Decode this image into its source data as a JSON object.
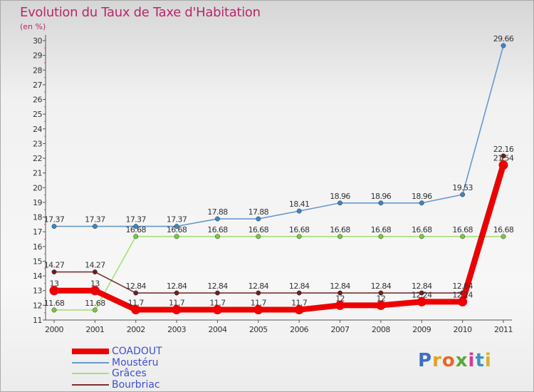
{
  "title": "Evolution du Taux de Taxe d'Habitation",
  "unit": "(en %)",
  "logo": {
    "letters": [
      "P",
      "r",
      "o",
      "x",
      "i",
      "t",
      "i"
    ],
    "colors": [
      "#3e6fc6",
      "#e2a12a",
      "#e9672b",
      "#5aa83a",
      "#d83b8b",
      "#3e93c6",
      "#d6b12e"
    ]
  },
  "chart_data": {
    "type": "line",
    "x": [
      "2000",
      "2001",
      "2002",
      "2003",
      "2004",
      "2005",
      "2006",
      "2007",
      "2008",
      "2009",
      "2010",
      "2011"
    ],
    "ylim": [
      11,
      30
    ],
    "y_ticks": [
      "11",
      "12",
      "13",
      "14",
      "15",
      "16",
      "17",
      "18",
      "19",
      "20",
      "21",
      "22",
      "23",
      "24",
      "25",
      "26",
      "27",
      "28",
      "29",
      "30"
    ],
    "grid": false,
    "legend_position": "bottom-left",
    "series": [
      {
        "name": "COADOUT",
        "color": "#ee0000",
        "thick": true,
        "values": [
          13,
          13,
          11.7,
          11.7,
          11.7,
          11.7,
          11.7,
          12,
          12,
          12.24,
          12.24,
          21.54
        ],
        "labels": [
          "13",
          "13",
          "11.7",
          "11.7",
          "11.7",
          "11.7",
          "11.7",
          "12",
          "12",
          "12.24",
          "12.24",
          "21.54"
        ]
      },
      {
        "name": "Moustéru",
        "color": "#6699cc",
        "point_color": "#3b86c8",
        "values": [
          17.37,
          17.37,
          17.37,
          17.37,
          17.88,
          17.88,
          18.41,
          18.96,
          18.96,
          18.96,
          19.53,
          29.66
        ],
        "labels": [
          "17.37",
          "17.37",
          "17.37",
          "17.37",
          "17.88",
          "17.88",
          "18.41",
          "18.96",
          "18.96",
          "18.96",
          "19.53",
          "29.66"
        ]
      },
      {
        "name": "Grâces",
        "color": "#a6e07a",
        "point_color": "#7cc843",
        "values": [
          11.68,
          11.68,
          16.68,
          16.68,
          16.68,
          16.68,
          16.68,
          16.68,
          16.68,
          16.68,
          16.68,
          16.68
        ],
        "labels": [
          "11.68",
          "11.68",
          "16.68",
          "16.68",
          "16.68",
          "16.68",
          "16.68",
          "16.68",
          "16.68",
          "16.68",
          "16.68",
          "16.68"
        ]
      },
      {
        "name": "Bourbriac",
        "color": "#7a3333",
        "point_color": "#6b1f1f",
        "values": [
          14.27,
          14.27,
          12.84,
          12.84,
          12.84,
          12.84,
          12.84,
          12.84,
          12.84,
          12.84,
          12.84,
          22.16
        ],
        "labels": [
          "14.27",
          "14.27",
          "12.84",
          "12.84",
          "12.84",
          "12.84",
          "12.84",
          "12.84",
          "12.84",
          "12.84",
          "12.84",
          "22.16"
        ]
      }
    ]
  }
}
